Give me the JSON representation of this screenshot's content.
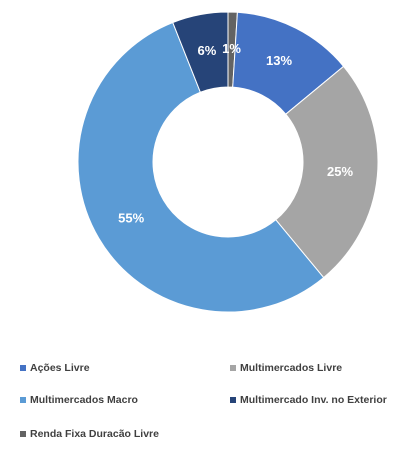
{
  "chart_data": {
    "type": "pie",
    "donut": true,
    "categories": [
      "Ações Livre",
      "Multimercados Livre",
      "Multimercados Macro",
      "Multimercado Inv. no Exterior",
      "Renda Fixa Duracão Livre"
    ],
    "values": [
      13,
      25,
      55,
      6,
      1
    ],
    "labels": [
      "13%",
      "25%",
      "55%",
      "6%",
      "1%"
    ],
    "colors": [
      "#4472C4",
      "#A5A5A5",
      "#5B9BD5",
      "#264478",
      "#636363"
    ],
    "label_colors": [
      "#ffffff",
      "#ffffff",
      "#ffffff",
      "#ffffff",
      "#ffffff"
    ],
    "slice_order": [
      4,
      0,
      1,
      2,
      3
    ],
    "legend_position": "bottom"
  }
}
